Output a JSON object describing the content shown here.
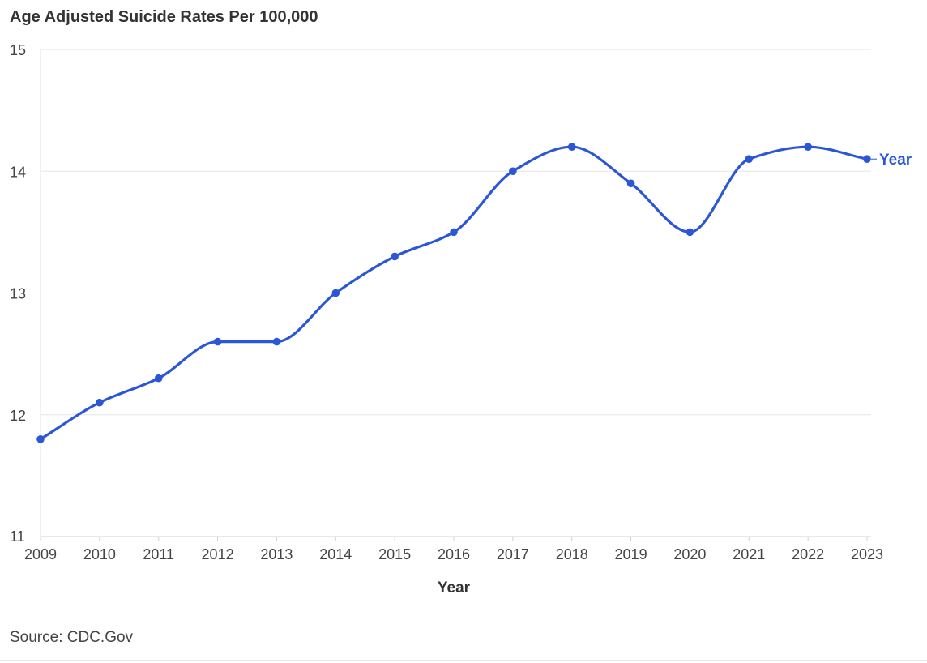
{
  "chart_data": {
    "type": "line",
    "title": "Age Adjusted Suicide Rates Per 100,000",
    "xlabel": "Year",
    "ylabel": "",
    "x": [
      2009,
      2010,
      2011,
      2012,
      2013,
      2014,
      2015,
      2016,
      2017,
      2018,
      2019,
      2020,
      2021,
      2022,
      2023
    ],
    "series": [
      {
        "name": "Year",
        "color": "#2b57d6",
        "values": [
          11.8,
          12.1,
          12.3,
          12.6,
          12.6,
          13.0,
          13.3,
          13.5,
          14.0,
          14.2,
          13.9,
          13.5,
          14.1,
          14.2,
          14.1
        ]
      }
    ],
    "ylim": [
      11,
      15
    ],
    "yticks": [
      11,
      12,
      13,
      14,
      15
    ],
    "grid": true,
    "legend": "end-of-line label",
    "source": "Source: CDC.Gov"
  }
}
